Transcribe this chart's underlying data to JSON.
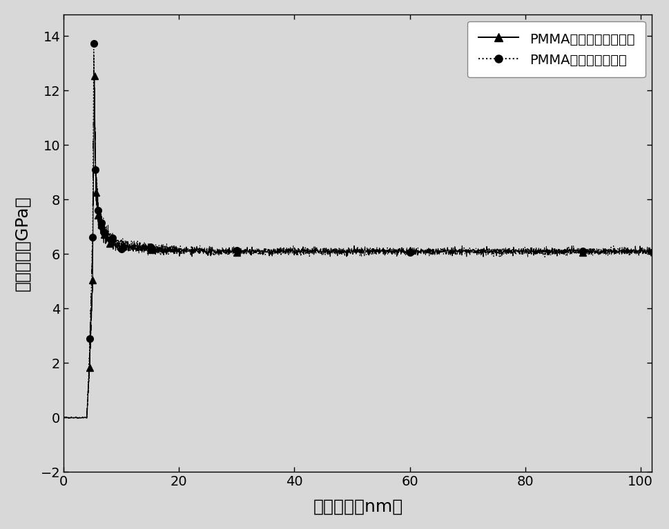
{
  "title": "",
  "xlabel": "压入深度（nm）",
  "ylabel": "杨氏模量（GPa）",
  "xlim": [
    0,
    102
  ],
  "ylim": [
    -2,
    14.8
  ],
  "xticks": [
    0,
    20,
    40,
    60,
    80,
    100
  ],
  "yticks": [
    -2,
    0,
    2,
    4,
    6,
    8,
    10,
    12,
    14
  ],
  "legend1": "PMMA未氧等离子体处理",
  "legend2": "PMMA氧等离子体处理",
  "line_color": "#000000",
  "bg_color": "#e8e8e8",
  "xlabel_fontsize": 18,
  "ylabel_fontsize": 18,
  "legend_fontsize": 14,
  "tick_fontsize": 14
}
